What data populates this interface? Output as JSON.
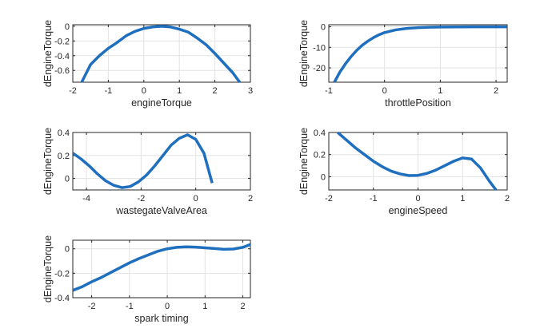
{
  "chart_data": [
    {
      "type": "line",
      "xlabel": "engineTorque",
      "ylabel": "dEngineTorque",
      "xlim": [
        -2,
        3
      ],
      "ylim": [
        -0.76,
        0.02
      ],
      "xticks": [
        -2,
        -1,
        0,
        1,
        2,
        3
      ],
      "yticks": [
        0,
        -0.2,
        -0.4,
        -0.6
      ],
      "xtick_labels": [
        "-2",
        "-1",
        "0",
        "1",
        "2",
        "3"
      ],
      "ytick_labels": [
        "0",
        "-0.2",
        "-0.4",
        "-0.6"
      ],
      "grid": true,
      "color": "#1f6fbf",
      "series": [
        {
          "x": [
            -1.75,
            -1.5,
            -1.25,
            -1.0,
            -0.75,
            -0.5,
            -0.25,
            0.0,
            0.25,
            0.5,
            0.75,
            1.0,
            1.25,
            1.5,
            1.75,
            2.0,
            2.25,
            2.5,
            2.7
          ],
          "y": [
            -0.76,
            -0.52,
            -0.4,
            -0.3,
            -0.22,
            -0.13,
            -0.07,
            -0.03,
            -0.01,
            0.0,
            -0.01,
            -0.04,
            -0.08,
            -0.16,
            -0.25,
            -0.37,
            -0.5,
            -0.63,
            -0.76
          ]
        }
      ]
    },
    {
      "type": "line",
      "xlabel": "throttlePosition",
      "ylabel": "dEngineTorque",
      "xlim": [
        -1,
        2.2
      ],
      "ylim": [
        -27,
        1
      ],
      "xticks": [
        -1,
        0,
        1,
        2
      ],
      "yticks": [
        0,
        -10,
        -20
      ],
      "xtick_labels": [
        "-1",
        "0",
        "1",
        "2"
      ],
      "ytick_labels": [
        "0",
        "-10",
        "-20"
      ],
      "grid": true,
      "color": "#1f6fbf",
      "series": [
        {
          "x": [
            -0.9,
            -0.8,
            -0.7,
            -0.6,
            -0.5,
            -0.4,
            -0.3,
            -0.2,
            -0.1,
            0.0,
            0.2,
            0.4,
            0.6,
            0.8,
            1.0,
            1.3,
            1.6,
            1.9,
            2.2
          ],
          "y": [
            -27,
            -22,
            -18,
            -14.5,
            -11.5,
            -9,
            -7,
            -5.3,
            -3.9,
            -2.8,
            -1.5,
            -0.8,
            -0.4,
            -0.2,
            -0.1,
            -0.05,
            0,
            0,
            0
          ]
        }
      ]
    },
    {
      "type": "line",
      "xlabel": "wastegateValveArea",
      "ylabel": "dEngineTorque",
      "xlim": [
        -4.5,
        2
      ],
      "ylim": [
        -0.1,
        0.4
      ],
      "xticks": [
        -4,
        -2,
        0,
        2
      ],
      "yticks": [
        0.4,
        0.2,
        0
      ],
      "xtick_labels": [
        "-4",
        "-2",
        "0",
        "2"
      ],
      "ytick_labels": [
        "0.4",
        "0.2",
        "0"
      ],
      "grid": true,
      "color": "#1f6fbf",
      "series": [
        {
          "x": [
            -4.5,
            -4.2,
            -3.9,
            -3.6,
            -3.3,
            -3.0,
            -2.7,
            -2.4,
            -2.1,
            -1.8,
            -1.5,
            -1.2,
            -0.9,
            -0.6,
            -0.3,
            0.0,
            0.3,
            0.6
          ],
          "y": [
            0.22,
            0.17,
            0.11,
            0.04,
            -0.02,
            -0.06,
            -0.08,
            -0.07,
            -0.03,
            0.03,
            0.11,
            0.2,
            0.29,
            0.35,
            0.38,
            0.34,
            0.22,
            -0.04
          ]
        }
      ]
    },
    {
      "type": "line",
      "xlabel": "engineSpeed",
      "ylabel": "dEngineTorque",
      "xlim": [
        -2,
        2
      ],
      "ylim": [
        -0.12,
        0.4
      ],
      "xticks": [
        -2,
        -1,
        0,
        1,
        2
      ],
      "yticks": [
        0.4,
        0.2,
        0
      ],
      "xtick_labels": [
        "-2",
        "-1",
        "0",
        "1",
        "2"
      ],
      "ytick_labels": [
        "0.4",
        "0.2",
        "0"
      ],
      "grid": true,
      "color": "#1f6fbf",
      "series": [
        {
          "x": [
            -1.8,
            -1.6,
            -1.4,
            -1.2,
            -1.0,
            -0.8,
            -0.6,
            -0.4,
            -0.2,
            0.0,
            0.2,
            0.4,
            0.6,
            0.8,
            1.0,
            1.2,
            1.4,
            1.6,
            1.75
          ],
          "y": [
            0.4,
            0.33,
            0.26,
            0.2,
            0.14,
            0.09,
            0.05,
            0.025,
            0.01,
            0.012,
            0.03,
            0.06,
            0.1,
            0.14,
            0.17,
            0.16,
            0.08,
            -0.04,
            -0.12
          ]
        }
      ]
    },
    {
      "type": "line",
      "xlabel": "spark timing",
      "ylabel": "dEngineTorque",
      "xlim": [
        -2.5,
        2.2
      ],
      "ylim": [
        -0.4,
        0.07
      ],
      "xticks": [
        -2,
        -1,
        0,
        1,
        2
      ],
      "yticks": [
        0,
        -0.2,
        -0.4
      ],
      "xtick_labels": [
        "-2",
        "-1",
        "0",
        "1",
        "2"
      ],
      "ytick_labels": [
        "0",
        "-0.2",
        "-0.4"
      ],
      "grid": true,
      "color": "#1f6fbf",
      "series": [
        {
          "x": [
            -2.5,
            -2.25,
            -2.0,
            -1.75,
            -1.5,
            -1.25,
            -1.0,
            -0.75,
            -0.5,
            -0.25,
            0.0,
            0.25,
            0.5,
            0.75,
            1.0,
            1.25,
            1.5,
            1.75,
            2.0,
            2.2
          ],
          "y": [
            -0.34,
            -0.31,
            -0.27,
            -0.235,
            -0.195,
            -0.155,
            -0.115,
            -0.08,
            -0.05,
            -0.02,
            0.0,
            0.012,
            0.016,
            0.014,
            0.008,
            0.002,
            -0.004,
            -0.002,
            0.012,
            0.035
          ]
        }
      ]
    }
  ]
}
